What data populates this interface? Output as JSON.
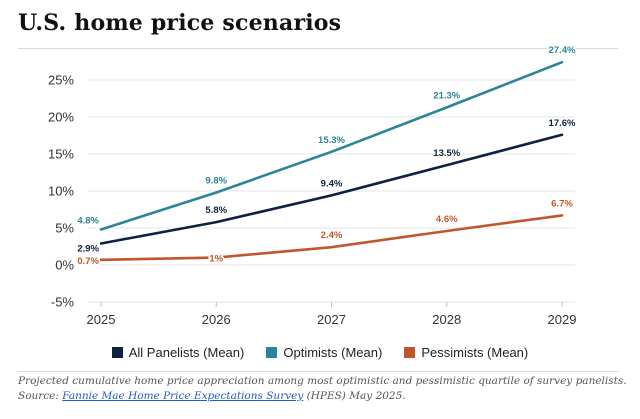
{
  "page": {
    "title": "U.S. home price scenarios"
  },
  "chart_data": {
    "type": "line",
    "title": "U.S. home price scenarios",
    "xlabel": "",
    "ylabel": "",
    "x": [
      2025,
      2026,
      2027,
      2028,
      2029
    ],
    "x_tick_labels": [
      "2025",
      "2026",
      "2027",
      "2028",
      "2029"
    ],
    "y_tick_labels": [
      "25%",
      "20%",
      "15%",
      "10%",
      "5%",
      "0%",
      "-5%"
    ],
    "y_ticks": [
      25,
      20,
      15,
      10,
      5,
      0,
      -5
    ],
    "ylim": [
      -5,
      28
    ],
    "grid": "horizontal",
    "legend_position": "bottom-center",
    "series": [
      {
        "name": "All Panelists (Mean)",
        "color": "#0d2240",
        "values": [
          2.9,
          5.8,
          9.4,
          13.5,
          17.6
        ],
        "labels": [
          "2.9%",
          "5.8%",
          "9.4%",
          "13.5%",
          "17.6%"
        ]
      },
      {
        "name": "Optimists (Mean)",
        "color": "#2a8596",
        "values": [
          4.8,
          9.8,
          15.3,
          21.3,
          27.4
        ],
        "labels": [
          "4.8%",
          "9.8%",
          "15.3%",
          "21.3%",
          "27.4%"
        ]
      },
      {
        "name": "Pessimists (Mean)",
        "color": "#c0562b",
        "values": [
          0.7,
          1,
          2.4,
          4.6,
          6.7
        ],
        "labels": [
          "0.7%",
          "1%",
          "2.4%",
          "4.6%",
          "6.7%"
        ]
      }
    ]
  },
  "caption": {
    "line1": "Projected cumulative home price appreciation among most optimistic and pessimistic quartile of survey panelists.",
    "source_prefix": "Source: ",
    "source_link": "Fannie Mae Home Price Expectations Survey",
    "source_suffix": " (HPES) May 2025."
  }
}
